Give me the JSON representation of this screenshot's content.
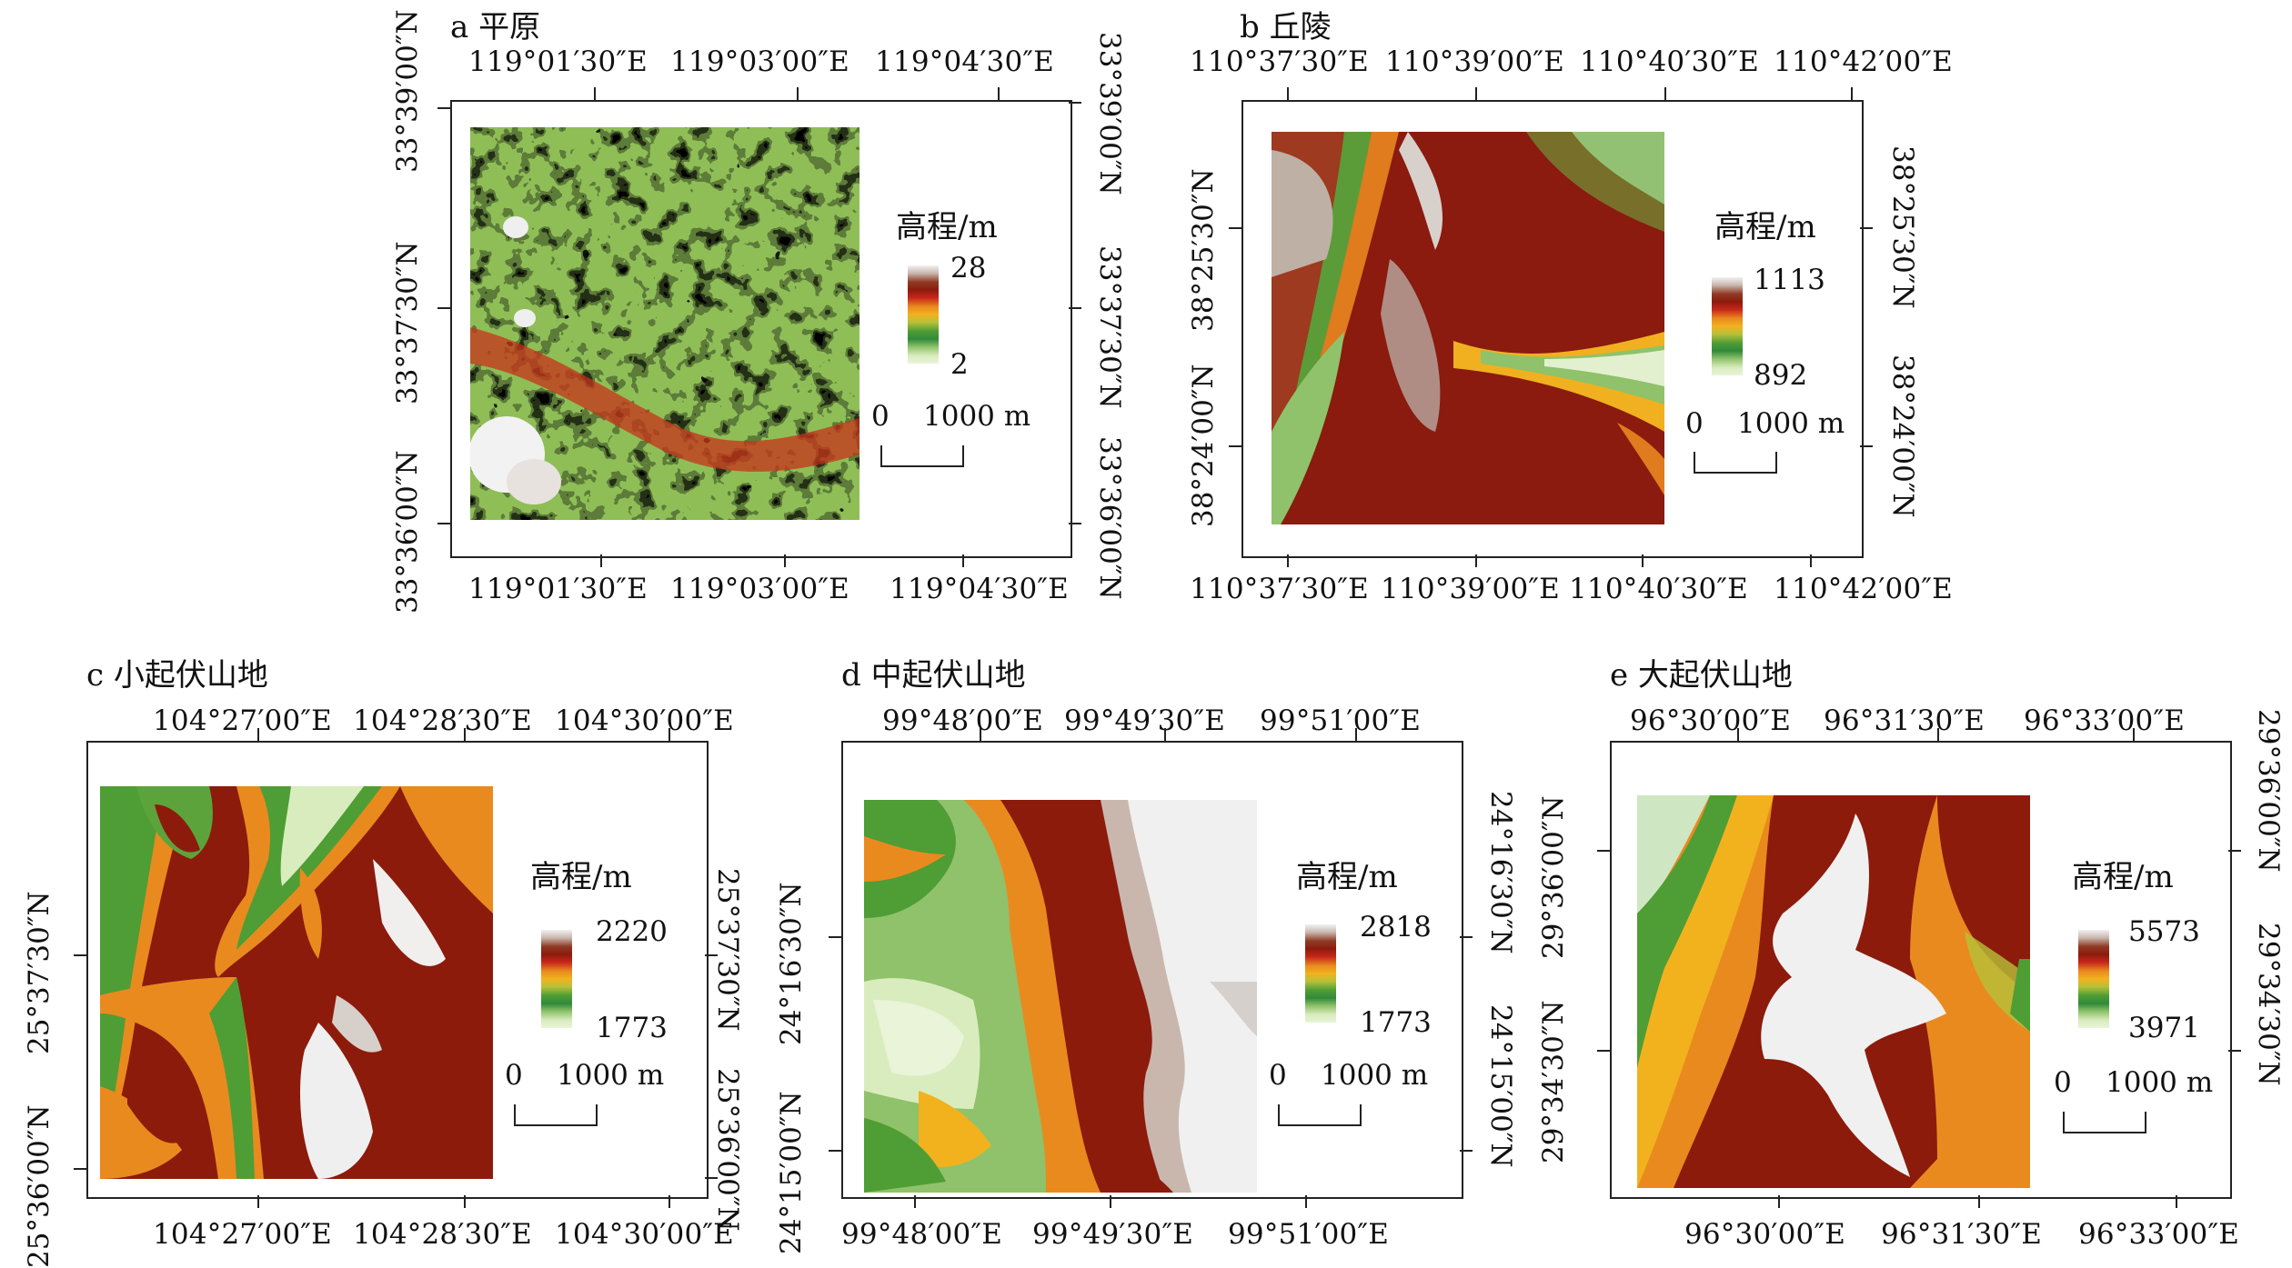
{
  "panels": [
    {
      "id": "a",
      "title": "a 平原",
      "top_ticks": [
        "119°01′30″E",
        "119°03′00″E",
        "119°04′30″E"
      ],
      "bottom_ticks": [
        "119°01′30″E",
        "119°03′00″E",
        "119°04′30″E"
      ],
      "left_ticks": [
        "33°39′00″N",
        "33°37′30″N",
        "33°36′00″N"
      ],
      "right_ticks": [
        "33°39′00″N",
        "33°37′30″N",
        "33°36′00″N"
      ],
      "legend": {
        "title": "高程/m",
        "max": "28",
        "min": "2"
      },
      "scale": {
        "zero": "0",
        "label": "1000 m"
      }
    },
    {
      "id": "b",
      "title": "b 丘陵",
      "top_ticks": [
        "110°37′30″E",
        "110°39′00″E",
        "110°40′30″E",
        "110°42′00″E"
      ],
      "bottom_ticks": [
        "110°37′30″E",
        "110°39′00″E",
        "110°40′30″E",
        "110°42′00″E"
      ],
      "left_ticks": [
        "38°25′30″N",
        "38°24′00″N"
      ],
      "right_ticks": [
        "38°25′30″N",
        "38°24′00″N"
      ],
      "legend": {
        "title": "高程/m",
        "max": "1113",
        "min": "892"
      },
      "scale": {
        "zero": "0",
        "label": "1000 m"
      }
    },
    {
      "id": "c",
      "title": "c 小起伏山地",
      "top_ticks": [
        "104°27′00″E",
        "104°28′30″E",
        "104°30′00″E"
      ],
      "bottom_ticks": [
        "104°27′00″E",
        "104°28′30″E",
        "104°30′00″E"
      ],
      "left_ticks": [
        "25°37′30″N",
        "25°36′00″N"
      ],
      "right_ticks": [
        "25°37′30″N",
        "25°36′00″N"
      ],
      "legend": {
        "title": "高程/m",
        "max": "2220",
        "min": "1773"
      },
      "scale": {
        "zero": "0",
        "label": "1000 m"
      }
    },
    {
      "id": "d",
      "title": "d 中起伏山地",
      "top_ticks": [
        "99°48′00″E",
        "99°49′30″E",
        "99°51′00″E"
      ],
      "bottom_ticks": [
        "99°48′00″E",
        "99°49′30″E",
        "99°51′00″E"
      ],
      "left_ticks": [
        "24°16′30″N",
        "24°15′00″N"
      ],
      "right_ticks": [
        "24°16′30″N",
        "24°15′00″N"
      ],
      "legend": {
        "title": "高程/m",
        "max": "2818",
        "min": "1773"
      },
      "scale": {
        "zero": "0",
        "label": "1000 m"
      }
    },
    {
      "id": "e",
      "title": "e 大起伏山地",
      "top_ticks": [
        "96°30′00″E",
        "96°31′30″E",
        "96°33′00″E"
      ],
      "bottom_ticks": [
        "96°30′00″E",
        "96°31′30″E",
        "96°33′00″E"
      ],
      "left_ticks": [
        "29°36′00″N",
        "29°34′30″N"
      ],
      "right_ticks": [
        "29°36′00″N",
        "29°34′30″N"
      ],
      "legend": {
        "title": "高程/m",
        "max": "5573",
        "min": "3971"
      },
      "scale": {
        "zero": "0",
        "label": "1000 m"
      }
    }
  ],
  "colors": {
    "ramp": [
      "#f2f2f2",
      "#c9b7ae",
      "#8e3a24",
      "#8c1b0c",
      "#c8261a",
      "#e98a1f",
      "#f2b21e",
      "#b7c13a",
      "#4f9d35",
      "#2f8a3a",
      "#8fc26a",
      "#d9ecbe",
      "#e9f4d8"
    ]
  }
}
